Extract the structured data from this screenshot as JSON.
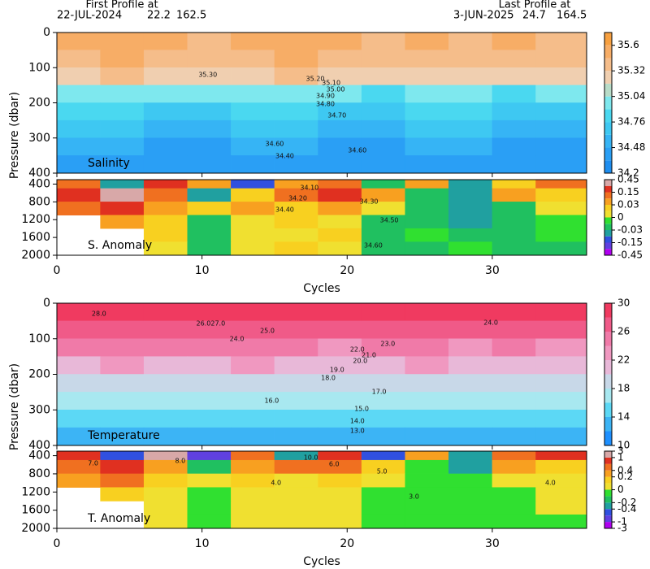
{
  "header": {
    "first_label": "First Profile at",
    "first_date": "22-JUL-2024",
    "first_lat": 22.2,
    "first_lon": 162.5,
    "last_label": "Last Profile at",
    "last_date": "3-JUN-2025",
    "last_lat": 24.7,
    "last_lon": 164.5
  },
  "chart_data": [
    {
      "type": "heatmap",
      "label": "Salinity",
      "ylabel": "Pressure (dbar)",
      "xlim": [
        0,
        36.5
      ],
      "xticks": [
        0,
        10,
        20,
        30
      ],
      "ylim": [
        0,
        400
      ],
      "yticks": [
        0,
        100,
        200,
        300,
        400
      ],
      "x_edges": [
        0,
        3,
        6,
        9,
        12,
        15,
        18,
        21,
        24,
        27,
        30,
        33,
        36.5
      ],
      "y_edges": [
        0,
        50,
        100,
        150,
        200,
        250,
        300,
        350,
        400
      ],
      "values": [
        [
          35.5,
          35.55,
          35.5,
          35.45,
          35.5,
          35.55,
          35.5,
          35.45,
          35.5,
          35.45,
          35.5,
          35.45
        ],
        [
          35.45,
          35.5,
          35.45,
          35.4,
          35.45,
          35.5,
          35.45,
          35.35,
          35.45,
          35.4,
          35.35,
          35.4
        ],
        [
          35.3,
          35.35,
          35.3,
          35.25,
          35.3,
          35.35,
          35.3,
          35.2,
          35.3,
          35.25,
          35.2,
          35.25
        ],
        [
          34.95,
          35.0,
          34.9,
          34.9,
          35.0,
          34.95,
          34.9,
          34.85,
          35.0,
          34.95,
          34.85,
          34.9
        ],
        [
          34.8,
          34.85,
          34.75,
          34.75,
          34.85,
          34.8,
          34.75,
          34.7,
          34.85,
          34.8,
          34.7,
          34.75
        ],
        [
          34.65,
          34.7,
          34.6,
          34.6,
          34.7,
          34.65,
          34.6,
          34.55,
          34.7,
          34.65,
          34.6,
          34.6
        ],
        [
          34.5,
          34.55,
          34.45,
          34.45,
          34.55,
          34.5,
          34.45,
          34.42,
          34.55,
          34.5,
          34.45,
          34.45
        ],
        [
          34.4,
          34.42,
          34.36,
          34.36,
          34.42,
          34.4,
          34.36,
          34.35,
          34.42,
          34.4,
          34.36,
          34.36
        ]
      ],
      "levels": [
        34.2,
        34.34,
        34.48,
        34.62,
        34.76,
        34.9,
        35.04,
        35.18,
        35.32,
        35.46,
        35.6,
        35.74
      ],
      "colors": [
        "#1e8ef0",
        "#2a9ff5",
        "#36b4f5",
        "#3ec8f2",
        "#4ad8f0",
        "#7ee8ee",
        "#b8dcc8",
        "#f0cfb0",
        "#f5bd8a",
        "#f7ad66",
        "#f7a040"
      ],
      "colorbar_ticks": [
        35.6,
        35.32,
        35.04,
        34.76,
        34.48,
        34.2
      ],
      "contour_labels": [
        {
          "label": "35.30",
          "x": 10.4,
          "y": 120
        },
        {
          "label": "35.20",
          "x": 17.8,
          "y": 132
        },
        {
          "label": "35.10",
          "x": 18.9,
          "y": 143
        },
        {
          "label": "35.00",
          "x": 19.2,
          "y": 162
        },
        {
          "label": "34.90",
          "x": 18.5,
          "y": 180
        },
        {
          "label": "34.80",
          "x": 18.5,
          "y": 203
        },
        {
          "label": "34.70",
          "x": 19.3,
          "y": 236
        },
        {
          "label": "34.60",
          "x": 15.0,
          "y": 317
        },
        {
          "label": "34.40",
          "x": 15.7,
          "y": 351
        },
        {
          "label": "34.60",
          "x": 20.7,
          "y": 335
        }
      ]
    },
    {
      "type": "heatmap",
      "label": "S. Anomaly",
      "xlabel": "Cycles",
      "xlim": [
        0,
        36.5
      ],
      "xticks": [
        0,
        10,
        20,
        30
      ],
      "ylim": [
        300,
        2000
      ],
      "yticks": [
        400,
        800,
        1200,
        1600,
        2000
      ],
      "x_edges": [
        0,
        3,
        6,
        9,
        12,
        15,
        18,
        21,
        24,
        27,
        30,
        33,
        36.5
      ],
      "y_edges": [
        300,
        500,
        800,
        1100,
        1400,
        1700,
        2000
      ],
      "values": [
        [
          0.1,
          -0.05,
          0.2,
          0.05,
          -0.1,
          0.03,
          0.1,
          -0.02,
          0.05,
          -0.05,
          0.02,
          0.1
        ],
        [
          0.2,
          0.35,
          0.1,
          -0.05,
          0.02,
          0.1,
          0.2,
          0.04,
          -0.02,
          -0.08,
          0.05,
          0.02
        ],
        [
          0.1,
          0.2,
          0.08,
          0.02,
          0.04,
          0.02,
          0.05,
          0.01,
          -0.02,
          -0.04,
          -0.02,
          0.01
        ],
        [
          null,
          0.05,
          0.02,
          -0.02,
          0.01,
          0.02,
          0.01,
          -0.02,
          -0.02,
          -0.05,
          -0.02,
          -0.01
        ],
        [
          null,
          null,
          0.02,
          -0.02,
          0.01,
          0.01,
          0.02,
          -0.02,
          -0.01,
          -0.02,
          -0.02,
          -0.01
        ],
        [
          null,
          null,
          0.01,
          -0.02,
          0.01,
          0.02,
          0.01,
          -0.02,
          -0.02,
          -0.01,
          -0.02,
          -0.02
        ]
      ],
      "levels": [
        -0.45,
        -0.3,
        -0.15,
        -0.09,
        -0.03,
        -0.015,
        0,
        0.015,
        0.03,
        0.09,
        0.15,
        0.3,
        0.45
      ],
      "colors": [
        "#b000f0",
        "#6040e0",
        "#3050e0",
        "#20a0a0",
        "#20c060",
        "#30e030",
        "#f0e030",
        "#f8d020",
        "#f8a020",
        "#f07020",
        "#e03020",
        "#d8a8a8"
      ],
      "colorbar_ticks": [
        0.45,
        0.15,
        0.03,
        0,
        -0.03,
        -0.15,
        -0.45
      ],
      "contour_labels": [
        {
          "label": "34.10",
          "x": 17.4,
          "y": 483
        },
        {
          "label": "34.20",
          "x": 16.6,
          "y": 720
        },
        {
          "label": "34.30",
          "x": 21.5,
          "y": 794
        },
        {
          "label": "34.40",
          "x": 15.7,
          "y": 976
        },
        {
          "label": "34.50",
          "x": 22.9,
          "y": 1214
        },
        {
          "label": "34.60",
          "x": 21.8,
          "y": 1780
        }
      ]
    },
    {
      "type": "heatmap",
      "label": "Temperature",
      "ylabel": "Pressure (dbar)",
      "xlim": [
        0,
        36.5
      ],
      "xticks": [
        0,
        10,
        20,
        30
      ],
      "ylim": [
        0,
        400
      ],
      "yticks": [
        0,
        100,
        200,
        300,
        400
      ],
      "x_edges": [
        0,
        3,
        6,
        9,
        12,
        15,
        18,
        21,
        24,
        27,
        30,
        33,
        36.5
      ],
      "y_edges": [
        0,
        50,
        100,
        150,
        200,
        250,
        300,
        350,
        400
      ],
      "values": [
        [
          28.5,
          28.8,
          28.5,
          28.7,
          29,
          28.6,
          28.4,
          28.7,
          29,
          28.6,
          28.5,
          28.4
        ],
        [
          27,
          27.5,
          26.8,
          27.2,
          27.6,
          27,
          26.8,
          27.2,
          27.8,
          26.5,
          27,
          26.8
        ],
        [
          24.5,
          25,
          24,
          24.5,
          25,
          24.2,
          23.8,
          24.5,
          25.2,
          23.5,
          24,
          23.8
        ],
        [
          21.5,
          22,
          21,
          21.5,
          22.2,
          21,
          20.8,
          21.5,
          22.5,
          20.5,
          21,
          21
        ],
        [
          19,
          19.5,
          18.8,
          19,
          19.5,
          18.6,
          18.5,
          19,
          19.8,
          18.2,
          18.8,
          18.6
        ],
        [
          17,
          17.4,
          16.8,
          16.6,
          17.2,
          16.5,
          16.4,
          17,
          17.6,
          16.2,
          16.8,
          16.6
        ],
        [
          15,
          15.4,
          14.6,
          14.2,
          15,
          14.5,
          14.2,
          14.8,
          15.5,
          14.2,
          14.8,
          14.5
        ],
        [
          13,
          13.2,
          12.8,
          12.5,
          13,
          12.6,
          12.4,
          12.8,
          13.4,
          12.2,
          12.8,
          12.6
        ]
      ],
      "levels": [
        10,
        12,
        14,
        16,
        18,
        20,
        22,
        24,
        26,
        28,
        30
      ],
      "colors": [
        "#1e90ff",
        "#3cb4f5",
        "#5cd8f5",
        "#a8e8f0",
        "#c8d8e8",
        "#e8b8d8",
        "#f098c0",
        "#f07aa8",
        "#f05a88",
        "#f03a60"
      ],
      "colorbar_ticks": [
        30,
        26,
        22,
        18,
        14,
        10
      ],
      "contour_labels": [
        {
          "label": "28.0",
          "x": 2.9,
          "y": 30
        },
        {
          "label": "26.0",
          "x": 10.1,
          "y": 57
        },
        {
          "label": "27.0",
          "x": 11.1,
          "y": 57
        },
        {
          "label": "25.0",
          "x": 14.5,
          "y": 78
        },
        {
          "label": "24.0",
          "x": 12.4,
          "y": 101
        },
        {
          "label": "23.0",
          "x": 22.8,
          "y": 114
        },
        {
          "label": "22.0",
          "x": 20.7,
          "y": 130
        },
        {
          "label": "21.0",
          "x": 21.5,
          "y": 146
        },
        {
          "label": "20.0",
          "x": 20.9,
          "y": 162
        },
        {
          "label": "19.0",
          "x": 19.3,
          "y": 187
        },
        {
          "label": "18.0",
          "x": 18.7,
          "y": 210
        },
        {
          "label": "17.0",
          "x": 22.2,
          "y": 249
        },
        {
          "label": "16.0",
          "x": 14.8,
          "y": 274
        },
        {
          "label": "15.0",
          "x": 21.0,
          "y": 297
        },
        {
          "label": "14.0",
          "x": 20.7,
          "y": 331
        },
        {
          "label": "13.0",
          "x": 20.7,
          "y": 359
        },
        {
          "label": "24.0",
          "x": 29.9,
          "y": 55
        }
      ]
    },
    {
      "type": "heatmap",
      "label": "T. Anomaly",
      "xlabel": "Cycles",
      "xlim": [
        0,
        36.5
      ],
      "xticks": [
        0,
        10,
        20,
        30
      ],
      "ylim": [
        300,
        2000
      ],
      "yticks": [
        400,
        800,
        1200,
        1600,
        2000
      ],
      "x_edges": [
        0,
        3,
        6,
        9,
        12,
        15,
        18,
        21,
        24,
        27,
        30,
        33,
        36.5
      ],
      "y_edges": [
        300,
        500,
        800,
        1100,
        1400,
        1700,
        2000
      ],
      "values": [
        [
          0.8,
          -0.5,
          1.2,
          -0.8,
          0.5,
          -0.3,
          0.9,
          -0.6,
          0.3,
          -0.4,
          0.5,
          0.7
        ],
        [
          0.5,
          0.8,
          0.3,
          -0.2,
          0.2,
          0.4,
          0.6,
          0.1,
          -0.1,
          -0.3,
          0.3,
          0.1
        ],
        [
          0.3,
          0.4,
          0.15,
          0.05,
          0.1,
          0.08,
          0.15,
          0.05,
          -0.05,
          -0.1,
          0.05,
          0.05
        ],
        [
          null,
          0.1,
          0.05,
          -0.05,
          0.03,
          0.05,
          0.02,
          -0.05,
          -0.05,
          -0.1,
          -0.03,
          0.02
        ],
        [
          null,
          null,
          0.03,
          -0.05,
          0.02,
          0.03,
          0.02,
          -0.04,
          -0.03,
          -0.05,
          -0.03,
          0.01
        ],
        [
          null,
          null,
          0.02,
          -0.04,
          0.02,
          0.03,
          0.02,
          -0.03,
          -0.03,
          -0.03,
          -0.04,
          -0.03
        ]
      ],
      "levels": [
        -3,
        -1,
        -0.7,
        -0.4,
        -0.2,
        -0.1,
        0,
        0.1,
        0.2,
        0.4,
        0.7,
        1,
        3
      ],
      "colors": [
        "#b000f0",
        "#6040e0",
        "#3050e0",
        "#20a0a0",
        "#20c060",
        "#30e030",
        "#f0e030",
        "#f8d020",
        "#f8a020",
        "#f07020",
        "#e03020",
        "#d8a8a8"
      ],
      "colorbar_ticks": [
        3,
        1,
        0.4,
        0.2,
        0,
        -0.2,
        -0.4,
        -1,
        -3
      ],
      "contour_labels": [
        {
          "label": "7.0",
          "x": 2.5,
          "y": 568
        },
        {
          "label": "8.0",
          "x": 8.5,
          "y": 514
        },
        {
          "label": "10.0",
          "x": 17.5,
          "y": 443
        },
        {
          "label": "6.0",
          "x": 19.1,
          "y": 586
        },
        {
          "label": "5.0",
          "x": 22.4,
          "y": 747
        },
        {
          "label": "4.0",
          "x": 15.1,
          "y": 998
        },
        {
          "label": "3.0",
          "x": 24.6,
          "y": 1302
        },
        {
          "label": "4.0",
          "x": 34.0,
          "y": 998
        }
      ]
    }
  ]
}
